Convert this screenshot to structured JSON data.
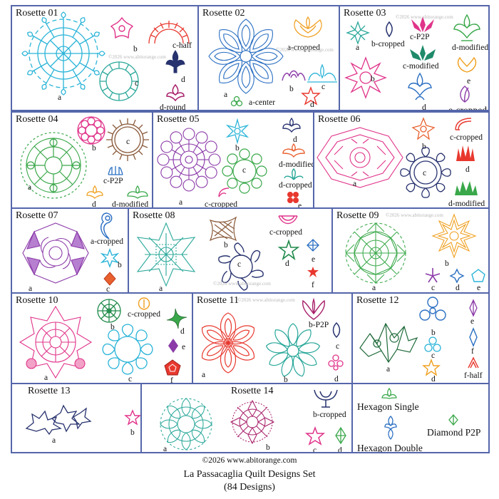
{
  "copyright": "©2026 www.abitorange.com",
  "footer_title": "La Passacaglia Quilt Designs Set",
  "footer_count": "(84 Designs)",
  "watermark": "©2026 www.abitorange.com",
  "colors": {
    "border": "#5566aa",
    "cyan": "#2bb4d8",
    "teal": "#2aa89a",
    "green": "#3aa84a",
    "pink": "#e0348a",
    "red": "#e8382e",
    "orange": "#f0a020",
    "purple": "#8b3aa8",
    "navy": "#27326e",
    "blue": "#2a6fc2",
    "brown": "#8a5a3a"
  },
  "rosettes": [
    {
      "title": "Rosette 01",
      "labels": [
        "a",
        "b",
        "c-half",
        "c",
        "d",
        "d-round"
      ]
    },
    {
      "title": "Rosette 02",
      "labels": [
        "a-cropped",
        "a",
        "b",
        "c",
        "a-center",
        "d"
      ]
    },
    {
      "title": "Rosette 03",
      "labels": [
        "a",
        "b-cropped",
        "c-P2P",
        "d-modified",
        "c-modified",
        "b",
        "e",
        "d",
        "e-cropped"
      ]
    },
    {
      "title": "Rosette 04",
      "labels": [
        "b",
        "c",
        "c-P2P",
        "a",
        "d",
        "d-modified"
      ]
    },
    {
      "title": "Rosette 05",
      "labels": [
        "b",
        "d",
        "d-modified",
        "c",
        "d-cropped",
        "a",
        "c-cropped",
        "e"
      ]
    },
    {
      "title": "Rosette 06",
      "labels": [
        "b",
        "c-cropped",
        "a",
        "c",
        "d",
        "d-modified"
      ]
    },
    {
      "title": "Rosette 07",
      "labels": [
        "a-cropped",
        "b",
        "a",
        "c"
      ]
    },
    {
      "title": "Rosette 08",
      "labels": [
        "b",
        "c-cropped",
        "a",
        "c",
        "d",
        "e",
        "f"
      ]
    },
    {
      "title": "Rosette 09",
      "labels": [
        "b",
        "a",
        "c",
        "d",
        "e"
      ]
    },
    {
      "title": "Rosette 10",
      "labels": [
        "b",
        "c-cropped",
        "d",
        "a",
        "c",
        "e",
        "f"
      ]
    },
    {
      "title": "Rosette 11",
      "labels": [
        "b-P2P",
        "c",
        "a",
        "b",
        "d"
      ]
    },
    {
      "title": "Rosette 12",
      "labels": [
        "b",
        "c",
        "e",
        "a",
        "d",
        "f",
        "f-half"
      ]
    },
    {
      "title": "Rosette 13",
      "labels": [
        "a",
        "b"
      ]
    },
    {
      "title": "Rosette 14",
      "labels": [
        "b-cropped",
        "a",
        "b",
        "c",
        "d"
      ]
    }
  ],
  "extras": {
    "hexagon_single": "Hexagon Single",
    "diamond_p2p": "Diamond P2P",
    "hexagon_double": "Hexagon Double"
  }
}
